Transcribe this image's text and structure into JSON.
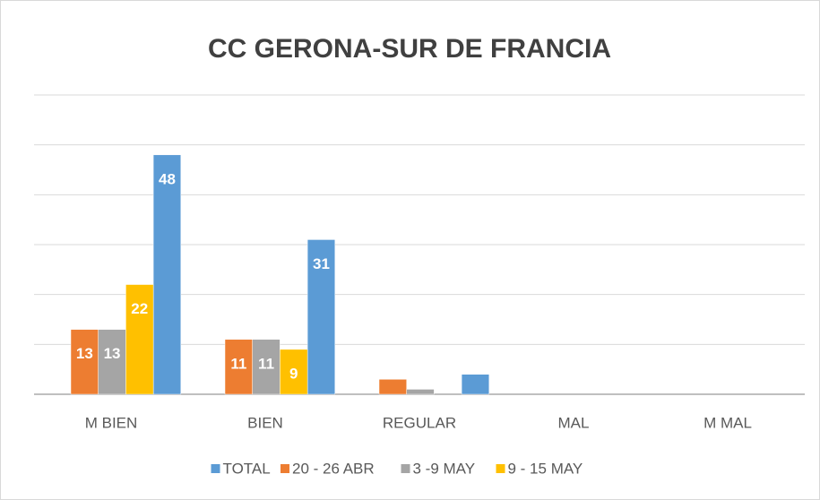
{
  "chart_data": {
    "type": "bar",
    "title": "CC GERONA-SUR DE FRANCIA",
    "categories": [
      "M BIEN",
      "BIEN",
      "REGULAR",
      "MAL",
      "M MAL"
    ],
    "series": [
      {
        "name": "TOTAL",
        "color": "#5b9bd5",
        "values": [
          48,
          31,
          4,
          0,
          0
        ]
      },
      {
        "name": "20 - 26 ABR",
        "color": "#ed7d31",
        "values": [
          13,
          11,
          3,
          0,
          0
        ]
      },
      {
        "name": "3 -9 MAY",
        "color": "#a5a5a5",
        "values": [
          13,
          11,
          1,
          0,
          0
        ]
      },
      {
        "name": "9 - 15 MAY",
        "color": "#ffc000",
        "values": [
          22,
          9,
          0,
          0,
          0
        ]
      }
    ],
    "ylim": [
      0,
      60
    ],
    "yticks": [
      0,
      10,
      20,
      30,
      40,
      50,
      60
    ],
    "grid": true,
    "legend": "bottom"
  }
}
